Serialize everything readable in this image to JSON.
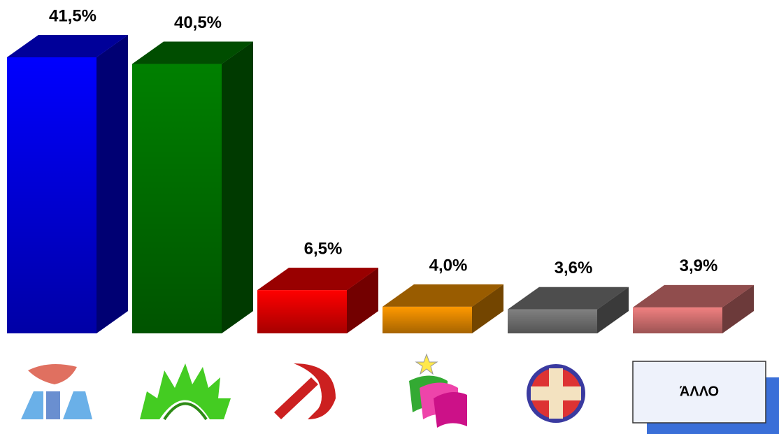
{
  "chart_data": {
    "type": "bar3d",
    "categories": [
      null,
      null,
      null,
      null,
      null,
      "ΆΛΛΟ"
    ],
    "values": [
      41.5,
      40.5,
      6.5,
      4.0,
      3.6,
      3.9
    ],
    "value_labels": [
      "41,5%",
      "40,5%",
      "6,5%",
      "4,0%",
      "3,6%",
      "3,9%"
    ],
    "colors": [
      "#0000ff",
      "#008000",
      "#ff0000",
      "#ff9900",
      "#808080",
      "#f08080"
    ]
  }
}
